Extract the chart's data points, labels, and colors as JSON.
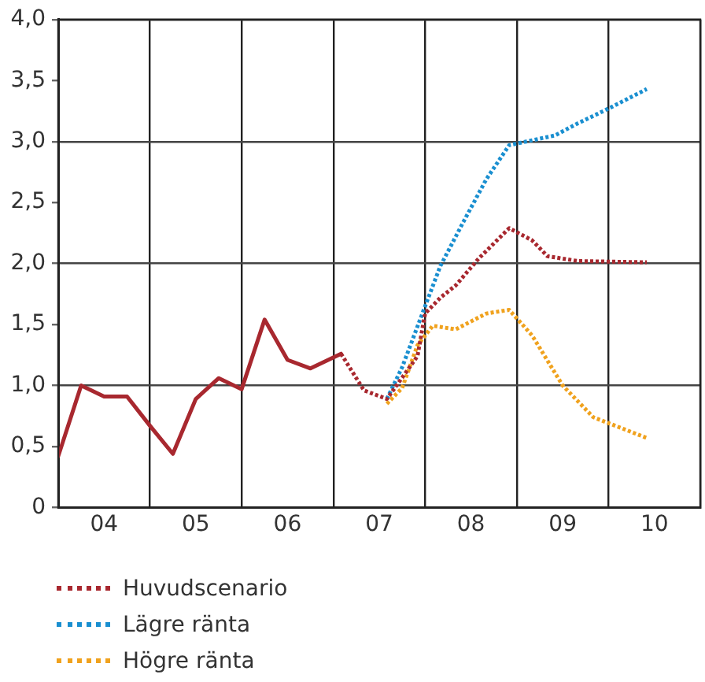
{
  "chart_data": {
    "type": "line",
    "xlim": [
      "2004-01",
      "2011-01"
    ],
    "xticks": [
      {
        "value": "2004-01",
        "label": null
      },
      {
        "value": "2004-07",
        "label": "04"
      },
      {
        "value": "2005-01",
        "label": null
      },
      {
        "value": "2005-07",
        "label": "05"
      },
      {
        "value": "2006-01",
        "label": null
      },
      {
        "value": "2006-07",
        "label": "06"
      },
      {
        "value": "2007-01",
        "label": null
      },
      {
        "value": "2007-07",
        "label": "07"
      },
      {
        "value": "2008-01",
        "label": null
      },
      {
        "value": "2008-07",
        "label": "08"
      },
      {
        "value": "2009-01",
        "label": null
      },
      {
        "value": "2009-07",
        "label": "09"
      },
      {
        "value": "2010-01",
        "label": null
      },
      {
        "value": "2010-07",
        "label": "10"
      },
      {
        "value": "2011-01",
        "label": null
      }
    ],
    "ylim": [
      0,
      4
    ],
    "yticks": [
      {
        "value": 0,
        "label": "0"
      },
      {
        "value": 0.5,
        "label": "0,5"
      },
      {
        "value": 1,
        "label": "1,0"
      },
      {
        "value": 1.5,
        "label": "1,5"
      },
      {
        "value": 2,
        "label": "2,0"
      },
      {
        "value": 2.5,
        "label": "2,5"
      },
      {
        "value": 3,
        "label": "3,0"
      },
      {
        "value": 3.5,
        "label": "3,5"
      },
      {
        "value": 4,
        "label": "4,0"
      }
    ],
    "grid": true,
    "legend": "bottom",
    "marker": "none",
    "series": [
      {
        "color": "#a8282f",
        "line_style": "solid",
        "x": [
          "2004-01",
          "2004-04",
          "2004-07",
          "2004-10",
          "2005-01",
          "2005-04",
          "2005-07",
          "2005-10",
          "2006-01",
          "2006-04",
          "2006-07",
          "2006-10",
          "2007-02"
        ],
        "values": [
          0.42,
          1.0,
          0.91,
          0.91,
          0.67,
          0.44,
          0.89,
          1.06,
          0.97,
          1.54,
          1.21,
          1.14,
          1.26
        ]
      },
      {
        "name": "Huvudscenario",
        "color": "#a8282f",
        "line_style": "dotted",
        "x": [
          "2007-02",
          "2007-05",
          "2007-08",
          "2007-12",
          "2008-01",
          "2008-03",
          "2008-05",
          "2008-08",
          "2008-12",
          "2009-03",
          "2009-05",
          "2009-09",
          "2010-06"
        ],
        "values": [
          1.26,
          0.96,
          0.89,
          1.24,
          1.59,
          1.72,
          1.82,
          2.04,
          2.29,
          2.19,
          2.06,
          2.02,
          2.01
        ]
      },
      {
        "name": "Lägre ränta",
        "color": "#1a8fd0",
        "line_style": "dotted",
        "x": [
          "2007-08",
          "2007-10",
          "2008-01",
          "2008-03",
          "2008-06",
          "2008-09",
          "2008-12",
          "2009-03",
          "2009-06",
          "2009-09",
          "2010-01",
          "2010-06"
        ],
        "values": [
          0.89,
          1.15,
          1.65,
          1.98,
          2.34,
          2.69,
          2.97,
          3.01,
          3.05,
          3.15,
          3.27,
          3.43
        ]
      },
      {
        "name": "Högre ränta",
        "color": "#f0a21e",
        "line_style": "dotted",
        "x": [
          "2007-08",
          "2007-10",
          "2007-12",
          "2008-02",
          "2008-05",
          "2008-09",
          "2008-12",
          "2009-03",
          "2009-07",
          "2009-11",
          "2010-06"
        ],
        "values": [
          0.85,
          0.98,
          1.33,
          1.49,
          1.46,
          1.59,
          1.62,
          1.41,
          1.0,
          0.74,
          0.57
        ]
      }
    ]
  }
}
